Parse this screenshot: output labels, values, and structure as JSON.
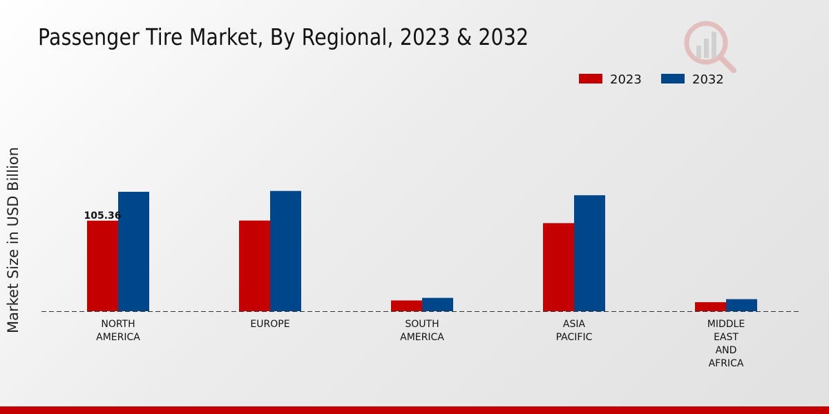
{
  "chart_data": {
    "type": "bar",
    "title": "Passenger Tire Market, By Regional, 2023 & 2032",
    "ylabel": "Market Size in USD Billion",
    "xlabel": "",
    "categories": [
      "NORTH\nAMERICA",
      "EUROPE",
      "SOUTH\nAMERICA",
      "ASIA\nPACIFIC",
      "MIDDLE\nEAST\nAND\nAFRICA"
    ],
    "series": [
      {
        "name": "2023",
        "color": "#c40000",
        "values": [
          105.36,
          105.5,
          12.5,
          102.5,
          10.5
        ]
      },
      {
        "name": "2032",
        "color": "#00468b",
        "values": [
          139.0,
          140.0,
          15.5,
          135.0,
          14.0
        ]
      }
    ],
    "data_labels": [
      {
        "series": "2023",
        "category_index": 0,
        "text": "105.36"
      }
    ],
    "ylim": [
      0,
      300
    ],
    "legend_position": "top-right",
    "grid": false
  }
}
